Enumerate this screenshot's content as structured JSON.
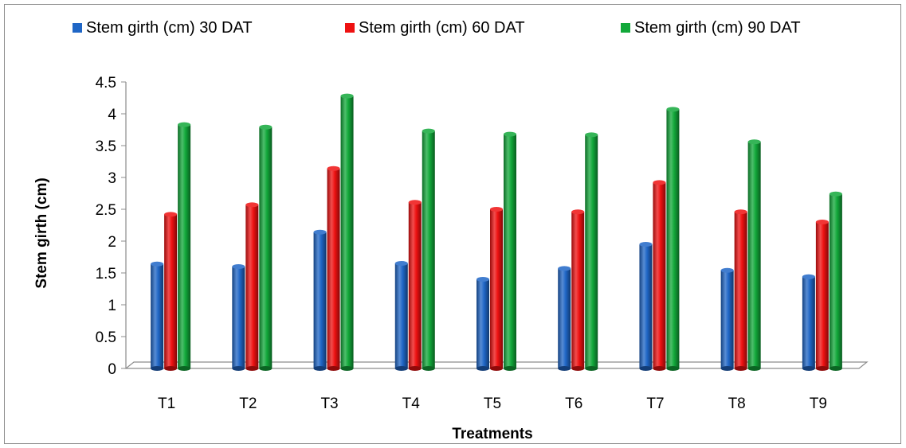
{
  "chart_data": {
    "type": "bar",
    "title": "",
    "xlabel": "Treatments",
    "ylabel": "Stem girth (cm)",
    "ylim": [
      0,
      4.5
    ],
    "yticks": [
      "0",
      "0.5",
      "1",
      "1.5",
      "2",
      "2.5",
      "3",
      "3.5",
      "4",
      "4.5"
    ],
    "categories": [
      "T1",
      "T2",
      "T3",
      "T4",
      "T5",
      "T6",
      "T7",
      "T8",
      "T9"
    ],
    "legend_position": "top",
    "grid": false,
    "series": [
      {
        "name": "Stem girth (cm) 30 DAT",
        "color": "#1f66c6",
        "values": [
          1.64,
          1.6,
          2.14,
          1.65,
          1.4,
          1.57,
          1.95,
          1.54,
          1.44
        ]
      },
      {
        "name": "Stem girth (cm) 60 DAT",
        "color": "#ee1111",
        "values": [
          2.42,
          2.57,
          3.14,
          2.61,
          2.5,
          2.46,
          2.92,
          2.46,
          2.3
        ]
      },
      {
        "name": "Stem girth (cm) 90 DAT",
        "color": "#12a83a",
        "values": [
          3.83,
          3.79,
          4.28,
          3.73,
          3.68,
          3.67,
          4.07,
          3.56,
          2.74
        ]
      }
    ]
  }
}
